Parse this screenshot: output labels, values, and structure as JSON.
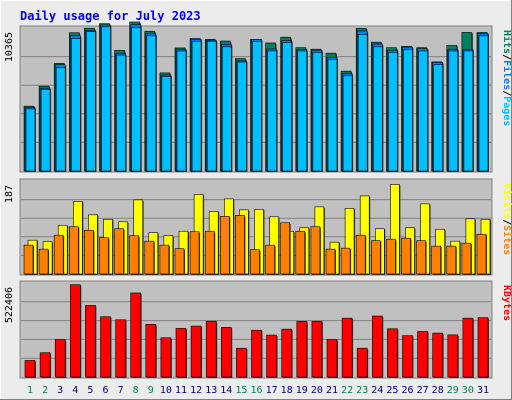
{
  "title": "Daily usage for July 2023",
  "colors": {
    "page_bg": "#ececec",
    "plot_bg": "#c0c0c0",
    "title": "#0000ff",
    "hits": "#00805c",
    "files": "#0080ff",
    "files_front": "#00c0ff",
    "pages": "#00c0ff",
    "sites": "#ff8000",
    "visits": "#ffff00",
    "kbytes": "#ff0000",
    "weekday_label": "#000080",
    "weekend_label": "#00805c"
  },
  "chart_data": [
    {
      "type": "bar",
      "panel": "top",
      "title": "Daily usage for July 2023",
      "ylabel_parts": [
        "Pages",
        "Files",
        "Hits"
      ],
      "ymax_label": "10365",
      "ylim": [
        0,
        10365
      ],
      "categories": [
        "1",
        "2",
        "3",
        "4",
        "5",
        "6",
        "7",
        "8",
        "9",
        "10",
        "11",
        "12",
        "13",
        "14",
        "15",
        "16",
        "17",
        "18",
        "19",
        "20",
        "21",
        "22",
        "23",
        "24",
        "25",
        "26",
        "27",
        "28",
        "29",
        "30",
        "31"
      ],
      "weekend_days": [
        "1",
        "2",
        "8",
        "9",
        "15",
        "16",
        "22",
        "23",
        "29",
        "30"
      ],
      "series": [
        {
          "name": "Hits",
          "values": [
            4700,
            6150,
            7800,
            10020,
            10350,
            10680,
            8740,
            10800,
            10130,
            7110,
            8920,
            9600,
            9540,
            9420,
            8150,
            9540,
            9280,
            9700,
            8940,
            8830,
            8540,
            7240,
            10340,
            9340,
            8940,
            9040,
            8940,
            7910,
            9100,
            10040,
            10040
          ]
        },
        {
          "name": "Files",
          "values": [
            4600,
            6000,
            7700,
            9800,
            10200,
            10580,
            8500,
            10600,
            9950,
            6950,
            8830,
            9550,
            9480,
            9180,
            7980,
            9540,
            8840,
            9450,
            8800,
            8750,
            8220,
            7050,
            10150,
            9200,
            8750,
            8980,
            8860,
            7880,
            8820,
            8800,
            9980
          ]
        },
        {
          "name": "Pages",
          "values": [
            4500,
            5900,
            7500,
            9600,
            10100,
            10450,
            8400,
            10400,
            9800,
            6850,
            8700,
            9400,
            9400,
            9000,
            7900,
            9400,
            8700,
            9300,
            8700,
            8600,
            8100,
            6900,
            9900,
            9000,
            8600,
            8800,
            8700,
            7700,
            8700,
            8700,
            9800
          ]
        }
      ]
    },
    {
      "type": "bar",
      "panel": "middle",
      "ylabel_parts": [
        "Sites",
        "Visits"
      ],
      "ymax_label": "187",
      "ylim": [
        0,
        187
      ],
      "categories": [
        "1",
        "2",
        "3",
        "4",
        "5",
        "6",
        "7",
        "8",
        "9",
        "10",
        "11",
        "12",
        "13",
        "14",
        "15",
        "16",
        "17",
        "18",
        "19",
        "20",
        "21",
        "22",
        "23",
        "24",
        "25",
        "26",
        "27",
        "28",
        "29",
        "30",
        "31"
      ],
      "series": [
        {
          "name": "Visits",
          "values": [
            68,
            65,
            98,
            146,
            119,
            110,
            105,
            149,
            83,
            77,
            86,
            160,
            126,
            151,
            129,
            130,
            115,
            86,
            93,
            135,
            64,
            132,
            157,
            91,
            180,
            93,
            141,
            90,
            66,
            111,
            110
          ]
        },
        {
          "name": "Sites",
          "values": [
            58,
            50,
            78,
            95,
            88,
            73,
            91,
            77,
            66,
            58,
            51,
            85,
            86,
            116,
            118,
            49,
            58,
            103,
            86,
            95,
            50,
            52,
            78,
            67,
            70,
            72,
            67,
            56,
            56,
            62,
            80
          ]
        }
      ]
    },
    {
      "type": "bar",
      "panel": "bottom",
      "ylabel_parts": [
        "KBytes"
      ],
      "ymax_label": "522406",
      "ylim": [
        0,
        522406
      ],
      "categories": [
        "1",
        "2",
        "3",
        "4",
        "5",
        "6",
        "7",
        "8",
        "9",
        "10",
        "11",
        "12",
        "13",
        "14",
        "15",
        "16",
        "17",
        "18",
        "19",
        "20",
        "21",
        "22",
        "23",
        "24",
        "25",
        "26",
        "27",
        "28",
        "29",
        "30",
        "31"
      ],
      "series": [
        {
          "name": "KBytes",
          "values": [
            92000,
            135000,
            208000,
            513000,
            398000,
            335000,
            318000,
            467000,
            293000,
            218000,
            270000,
            283000,
            310000,
            276000,
            160000,
            260000,
            233000,
            266000,
            309000,
            309000,
            208000,
            327000,
            160000,
            339000,
            268000,
            230000,
            253000,
            244000,
            234000,
            327000,
            330000
          ]
        }
      ]
    }
  ]
}
